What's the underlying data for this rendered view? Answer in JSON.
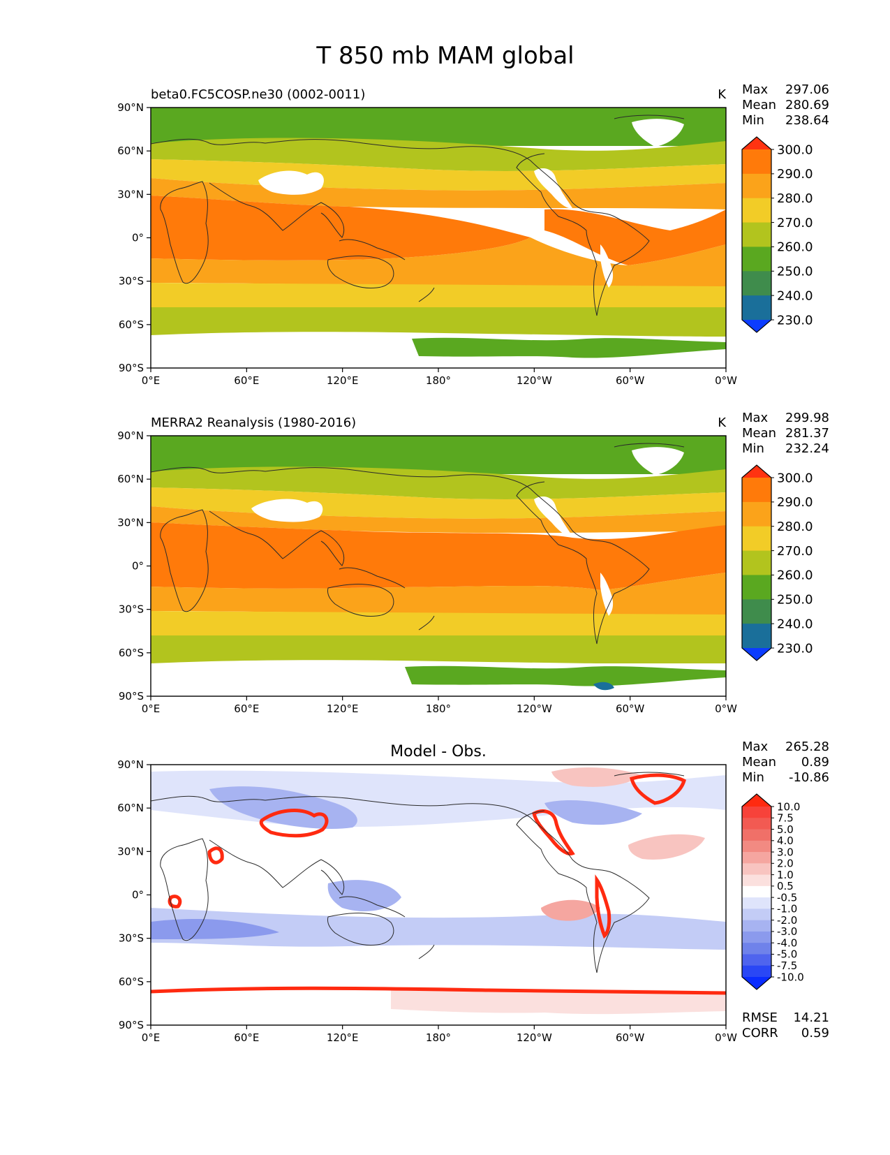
{
  "title": "T 850 mb MAM global",
  "lat_ticks": [
    "90°N",
    "60°N",
    "30°N",
    "0°",
    "30°S",
    "60°S",
    "90°S"
  ],
  "lon_ticks": [
    "0°E",
    "60°E",
    "120°E",
    "180°",
    "120°W",
    "60°W",
    "0°W"
  ],
  "panels": [
    {
      "id": "model",
      "left_title": "beta0.FC5COSP.ne30 (0002-0011)",
      "center_title": "",
      "units": "K",
      "stats": [
        {
          "label": "Max",
          "value": "297.06"
        },
        {
          "label": "Mean",
          "value": "280.69"
        },
        {
          "label": "Min",
          "value": "238.64"
        }
      ],
      "colorbar": {
        "ticks": [
          "300.0",
          "290.0",
          "280.0",
          "270.0",
          "260.0",
          "250.0",
          "240.0",
          "230.0"
        ],
        "colors": [
          "#ff3311",
          "#ff7a0a",
          "#fba31a",
          "#f2cc27",
          "#b2c41e",
          "#5aa820",
          "#3f8c4c",
          "#1a6f9a",
          "#0c3cff"
        ]
      }
    },
    {
      "id": "obs",
      "left_title": "MERRA2 Reanalysis (1980-2016)",
      "center_title": "",
      "units": "K",
      "stats": [
        {
          "label": "Max",
          "value": "299.98"
        },
        {
          "label": "Mean",
          "value": "281.37"
        },
        {
          "label": "Min",
          "value": "232.24"
        }
      ],
      "colorbar": {
        "ticks": [
          "300.0",
          "290.0",
          "280.0",
          "270.0",
          "260.0",
          "250.0",
          "240.0",
          "230.0"
        ],
        "colors": [
          "#ff3311",
          "#ff7a0a",
          "#fba31a",
          "#f2cc27",
          "#b2c41e",
          "#5aa820",
          "#3f8c4c",
          "#1a6f9a",
          "#0c3cff"
        ]
      }
    },
    {
      "id": "diff",
      "left_title": "",
      "center_title": "Model - Obs.",
      "units": "",
      "stats": [
        {
          "label": "Max",
          "value": "265.28"
        },
        {
          "label": "Mean",
          "value": "0.89"
        },
        {
          "label": "Min",
          "value": "-10.86"
        }
      ],
      "bottom_stats": [
        {
          "label": "RMSE",
          "value": "14.21"
        },
        {
          "label": "CORR",
          "value": "0.59"
        }
      ],
      "colorbar": {
        "ticks": [
          "10.0",
          "7.5",
          "5.0",
          "4.0",
          "3.0",
          "2.0",
          "1.0",
          "0.5",
          "-0.5",
          "-1.0",
          "-2.0",
          "-3.0",
          "-4.0",
          "-5.0",
          "-7.5",
          "-10.0"
        ],
        "colors": [
          "#ff2a10",
          "#f7423a",
          "#f25a52",
          "#f07068",
          "#f28a82",
          "#f5a6a0",
          "#f8c4c0",
          "#fbe0de",
          "#ffffff",
          "#dfe4fb",
          "#c3ccf6",
          "#a7b3f1",
          "#8b9aed",
          "#6f82ea",
          "#4f64ee",
          "#2a47f5",
          "#0a2cff"
        ]
      }
    }
  ]
}
